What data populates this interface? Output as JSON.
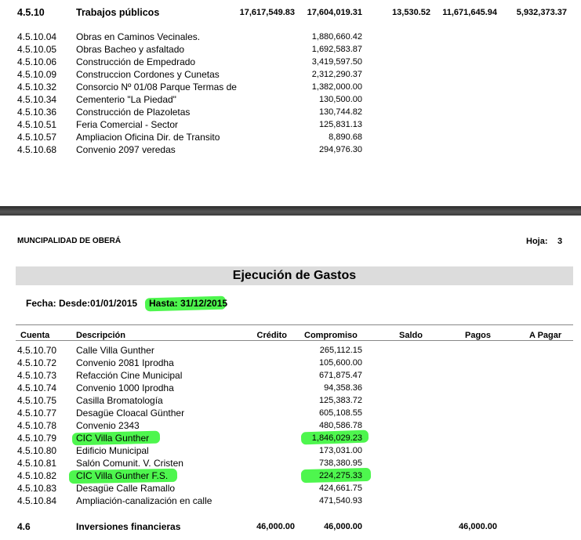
{
  "top_section": {
    "header": {
      "code": "4.5.10",
      "desc": "Trabajos públicos",
      "credito": "17,617,549.83",
      "compromiso": "17,604,019.31",
      "saldo": "13,530.52",
      "pagos": "11,671,645.94",
      "a_pagar": "5,932,373.37"
    },
    "rows": [
      {
        "code": "4.5.10.04",
        "desc": "Obras en Caminos Vecinales.",
        "compromiso": "1,880,660.42"
      },
      {
        "code": "4.5.10.05",
        "desc": "Obras Bacheo y asfaltado",
        "compromiso": "1,692,583.87"
      },
      {
        "code": "4.5.10.06",
        "desc": "Construcción de Empedrado",
        "compromiso": "3,419,597.50"
      },
      {
        "code": "4.5.10.09",
        "desc": "Construccion Cordones y Cunetas",
        "compromiso": "2,312,290.37"
      },
      {
        "code": "4.5.10.32",
        "desc": "Consorcio Nº 01/08 Parque Termas de",
        "compromiso": "1,382,000.00"
      },
      {
        "code": "4.5.10.34",
        "desc": "Cementerio \"La Piedad\"",
        "compromiso": "130,500.00"
      },
      {
        "code": "4.5.10.36",
        "desc": "Construcción de Plazoletas",
        "compromiso": "130,744.82"
      },
      {
        "code": "4.5.10.51",
        "desc": "Feria Comercial - Sector",
        "compromiso": "125,831.13"
      },
      {
        "code": "4.5.10.57",
        "desc": "Ampliacion Oficina Dir. de Transito",
        "compromiso": "8,890.68"
      },
      {
        "code": "4.5.10.68",
        "desc": "Convenio 2097 veredas",
        "compromiso": "294,976.30"
      }
    ]
  },
  "page_header": {
    "municipality": "MUNCIPALIDAD DE OBERÁ",
    "hoja_label": "Hoja:",
    "hoja_value": "3",
    "title": "Ejecución de Gastos",
    "fecha_label": "Fecha: Desde:01/01/2015",
    "hasta_label": "Hasta: 31/12/2015"
  },
  "columns": {
    "cuenta": "Cuenta",
    "descripcion": "Descripción",
    "credito": "Crédito",
    "compromiso": "Compromiso",
    "saldo": "Saldo",
    "pagos": "Pagos",
    "a_pagar": "A Pagar"
  },
  "bottom_rows": [
    {
      "code": "4.5.10.70",
      "desc": "Calle Villa Gunther",
      "compromiso": "265,112.15"
    },
    {
      "code": "4.5.10.72",
      "desc": "Convenio 2081 Iprodha",
      "compromiso": "105,600.00"
    },
    {
      "code": "4.5.10.73",
      "desc": "Refacción Cine Municipal",
      "compromiso": "671,875.47"
    },
    {
      "code": "4.5.10.74",
      "desc": "Convenio 1000 Iprodha",
      "compromiso": "94,358.36"
    },
    {
      "code": "4.5.10.75",
      "desc": "Casilla Bromatología",
      "compromiso": "125,383.72"
    },
    {
      "code": "4.5.10.77",
      "desc": "Desagüe Cloacal Günther",
      "compromiso": "605,108.55"
    },
    {
      "code": "4.5.10.78",
      "desc": "Convenio 2343",
      "compromiso": "480,586.78"
    },
    {
      "code": "4.5.10.79",
      "desc": "CIC Villa Gunther",
      "compromiso": "1,846,029.23"
    },
    {
      "code": "4.5.10.80",
      "desc": "Edificio Municipal",
      "compromiso": "173,031.00"
    },
    {
      "code": "4.5.10.81",
      "desc": "Salón Comunit. V. Cristen",
      "compromiso": "738,380.95"
    },
    {
      "code": "4.5.10.82",
      "desc": "CIC Villa Gunther F.S.",
      "compromiso": "224,275.33"
    },
    {
      "code": "4.5.10.83",
      "desc": "Desagüe Calle Ramallo",
      "compromiso": "424,661.75"
    },
    {
      "code": "4.5.10.84",
      "desc": "Ampliación-canalización en calle",
      "compromiso": "471,540.93"
    }
  ],
  "footer_row": {
    "code": "4.6",
    "desc": "Inversiones financieras",
    "credito": "46,000.00",
    "compromiso": "46,000.00",
    "pagos": "46,000.00"
  },
  "highlight_color": "#2ff52f"
}
